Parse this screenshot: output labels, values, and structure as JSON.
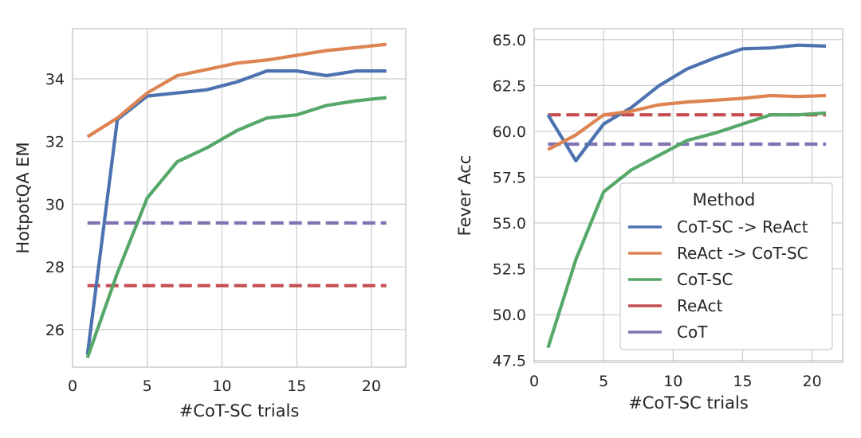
{
  "chart_data": [
    {
      "type": "line",
      "xlabel": "#CoT-SC trials",
      "ylabel": "HotpotQA EM",
      "xlim": [
        0,
        22.3
      ],
      "ylim": [
        24.8,
        35.6
      ],
      "xticks": [
        0,
        5,
        10,
        15,
        20
      ],
      "yticks": [
        26,
        28,
        30,
        32,
        34
      ],
      "grid": true,
      "legend": false,
      "series": [
        {
          "name": "CoT-SC -> ReAct",
          "style": "solid",
          "x": [
            1,
            3,
            5,
            7,
            9,
            11,
            13,
            15,
            17,
            19,
            21
          ],
          "y": [
            25.2,
            32.7,
            33.45,
            33.55,
            33.65,
            33.9,
            34.25,
            34.25,
            34.1,
            34.25,
            34.25
          ]
        },
        {
          "name": "ReAct -> CoT-SC",
          "style": "solid",
          "x": [
            1,
            3,
            5,
            7,
            9,
            11,
            13,
            15,
            17,
            19,
            21
          ],
          "y": [
            32.15,
            32.75,
            33.55,
            34.1,
            34.3,
            34.5,
            34.6,
            34.75,
            34.9,
            35.0,
            35.1
          ]
        },
        {
          "name": "CoT-SC",
          "style": "solid",
          "x": [
            1,
            3,
            5,
            7,
            9,
            11,
            13,
            15,
            17,
            19,
            21
          ],
          "y": [
            25.1,
            27.8,
            30.2,
            31.35,
            31.8,
            32.35,
            32.75,
            32.85,
            33.15,
            33.3,
            33.4
          ]
        },
        {
          "name": "ReAct",
          "style": "dashed",
          "x": [
            1,
            21
          ],
          "y": [
            27.4,
            27.4
          ]
        },
        {
          "name": "CoT",
          "style": "dashed",
          "x": [
            1,
            21
          ],
          "y": [
            29.4,
            29.4
          ]
        }
      ]
    },
    {
      "type": "line",
      "xlabel": "#CoT-SC trials",
      "ylabel": "Fever Acc",
      "xlim": [
        0,
        22.2
      ],
      "ylim": [
        47.4,
        65.6
      ],
      "xticks": [
        0,
        5,
        10,
        15,
        20
      ],
      "yticks": [
        47.5,
        50.0,
        52.5,
        55.0,
        57.5,
        60.0,
        62.5,
        65.0
      ],
      "grid": true,
      "legend": true,
      "legend_position": "lower-right",
      "legend_title": "Method",
      "series": [
        {
          "name": "CoT-SC -> ReAct",
          "style": "solid",
          "x": [
            1,
            3,
            5,
            7,
            9,
            11,
            13,
            15,
            17,
            19,
            21
          ],
          "y": [
            60.9,
            58.4,
            60.4,
            61.3,
            62.5,
            63.4,
            64.0,
            64.5,
            64.55,
            64.7,
            64.65
          ]
        },
        {
          "name": "ReAct -> CoT-SC",
          "style": "solid",
          "x": [
            1,
            3,
            5,
            7,
            9,
            11,
            13,
            15,
            17,
            19,
            21
          ],
          "y": [
            59.0,
            59.8,
            60.9,
            61.1,
            61.45,
            61.6,
            61.7,
            61.8,
            61.95,
            61.9,
            61.95
          ]
        },
        {
          "name": "CoT-SC",
          "style": "solid",
          "x": [
            1,
            3,
            5,
            7,
            9,
            11,
            13,
            15,
            17,
            19,
            21
          ],
          "y": [
            48.2,
            53.0,
            56.7,
            57.9,
            58.7,
            59.5,
            59.9,
            60.4,
            60.9,
            60.9,
            61.0
          ]
        },
        {
          "name": "ReAct",
          "style": "dashed",
          "x": [
            1,
            21
          ],
          "y": [
            60.9,
            60.9
          ]
        },
        {
          "name": "CoT",
          "style": "dashed",
          "x": [
            1,
            21
          ],
          "y": [
            59.3,
            59.3
          ]
        }
      ]
    }
  ],
  "colors": {
    "CoT-SC -> ReAct": "#4c72b0",
    "ReAct -> CoT-SC": "#dd8452",
    "CoT-SC": "#55a868",
    "ReAct": "#c44e52",
    "CoT": "#8172b3"
  }
}
